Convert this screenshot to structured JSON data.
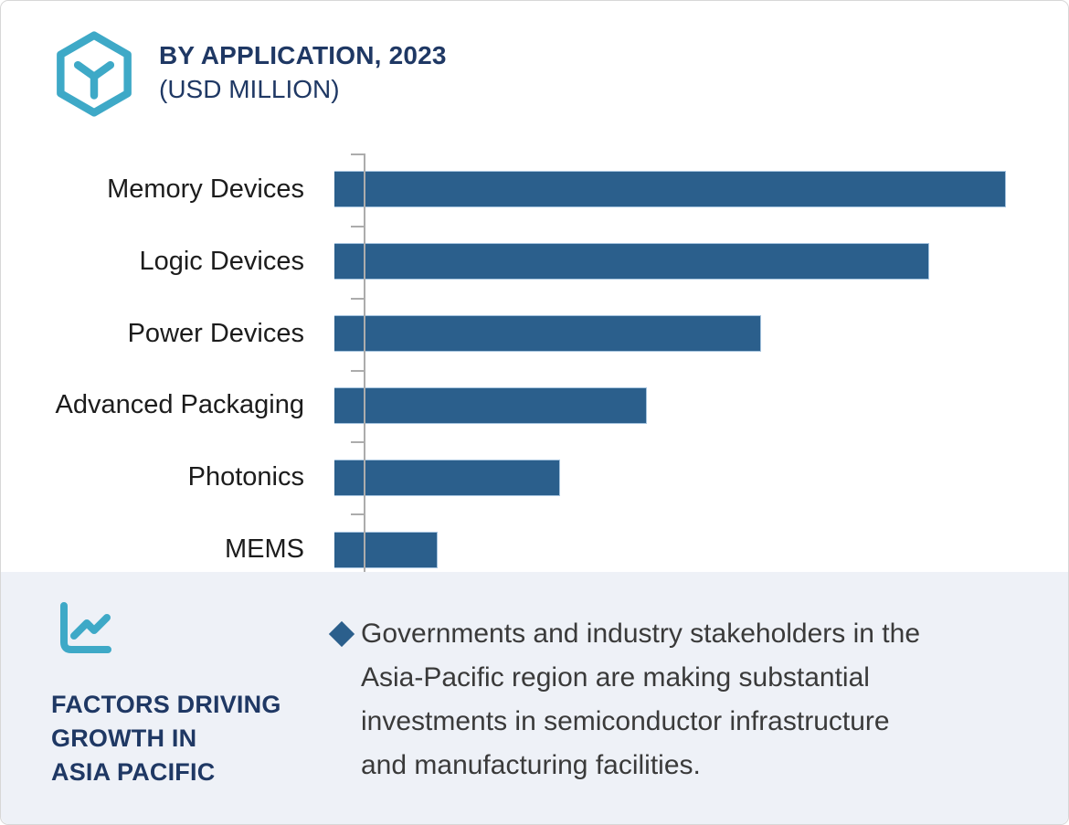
{
  "header": {
    "title_line1": "BY APPLICATION, 2023",
    "title_line2": "(USD MILLION)"
  },
  "chart_data": {
    "type": "bar",
    "orientation": "horizontal",
    "title": "BY APPLICATION, 2023 (USD MILLION)",
    "unit": "USD Million",
    "categories": [
      "Memory Devices",
      "Logic Devices",
      "Power Devices",
      "Advanced Packaging",
      "Photonics",
      "MEMS"
    ],
    "values_relative_pct_of_max": [
      100,
      88.6,
      63.6,
      46.5,
      33.6,
      15.4
    ],
    "bar_width_pct_of_plot": [
      91.5,
      81.1,
      58.2,
      42.6,
      30.7,
      14.1
    ],
    "value_labels_shown": false,
    "xlabel": "",
    "ylabel": "",
    "grid": false,
    "legend": false,
    "bar_color": "#2b5f8c",
    "bar_border_color": "#a5c3de",
    "axis_color": "#acacac"
  },
  "factors": {
    "heading": "FACTORS DRIVING\nGROWTH IN\nASIA PACIFIC"
  },
  "insight": {
    "text": "Governments and industry stakeholders in the\nAsia-Pacific region are making substantial\ninvestments in semiconductor infrastructure\nand manufacturing facilities."
  },
  "icons": {
    "header_icon": "hexagon-cube-icon",
    "factors_icon": "line-chart-icon",
    "bullet_icon": "diamond-bullet"
  },
  "colors": {
    "accent_navy": "#1f3864",
    "accent_teal": "#3ea9c7",
    "bar_blue": "#2b5f8c",
    "panel_bg": "#eef1f7",
    "body_text": "#3a3a3a"
  }
}
